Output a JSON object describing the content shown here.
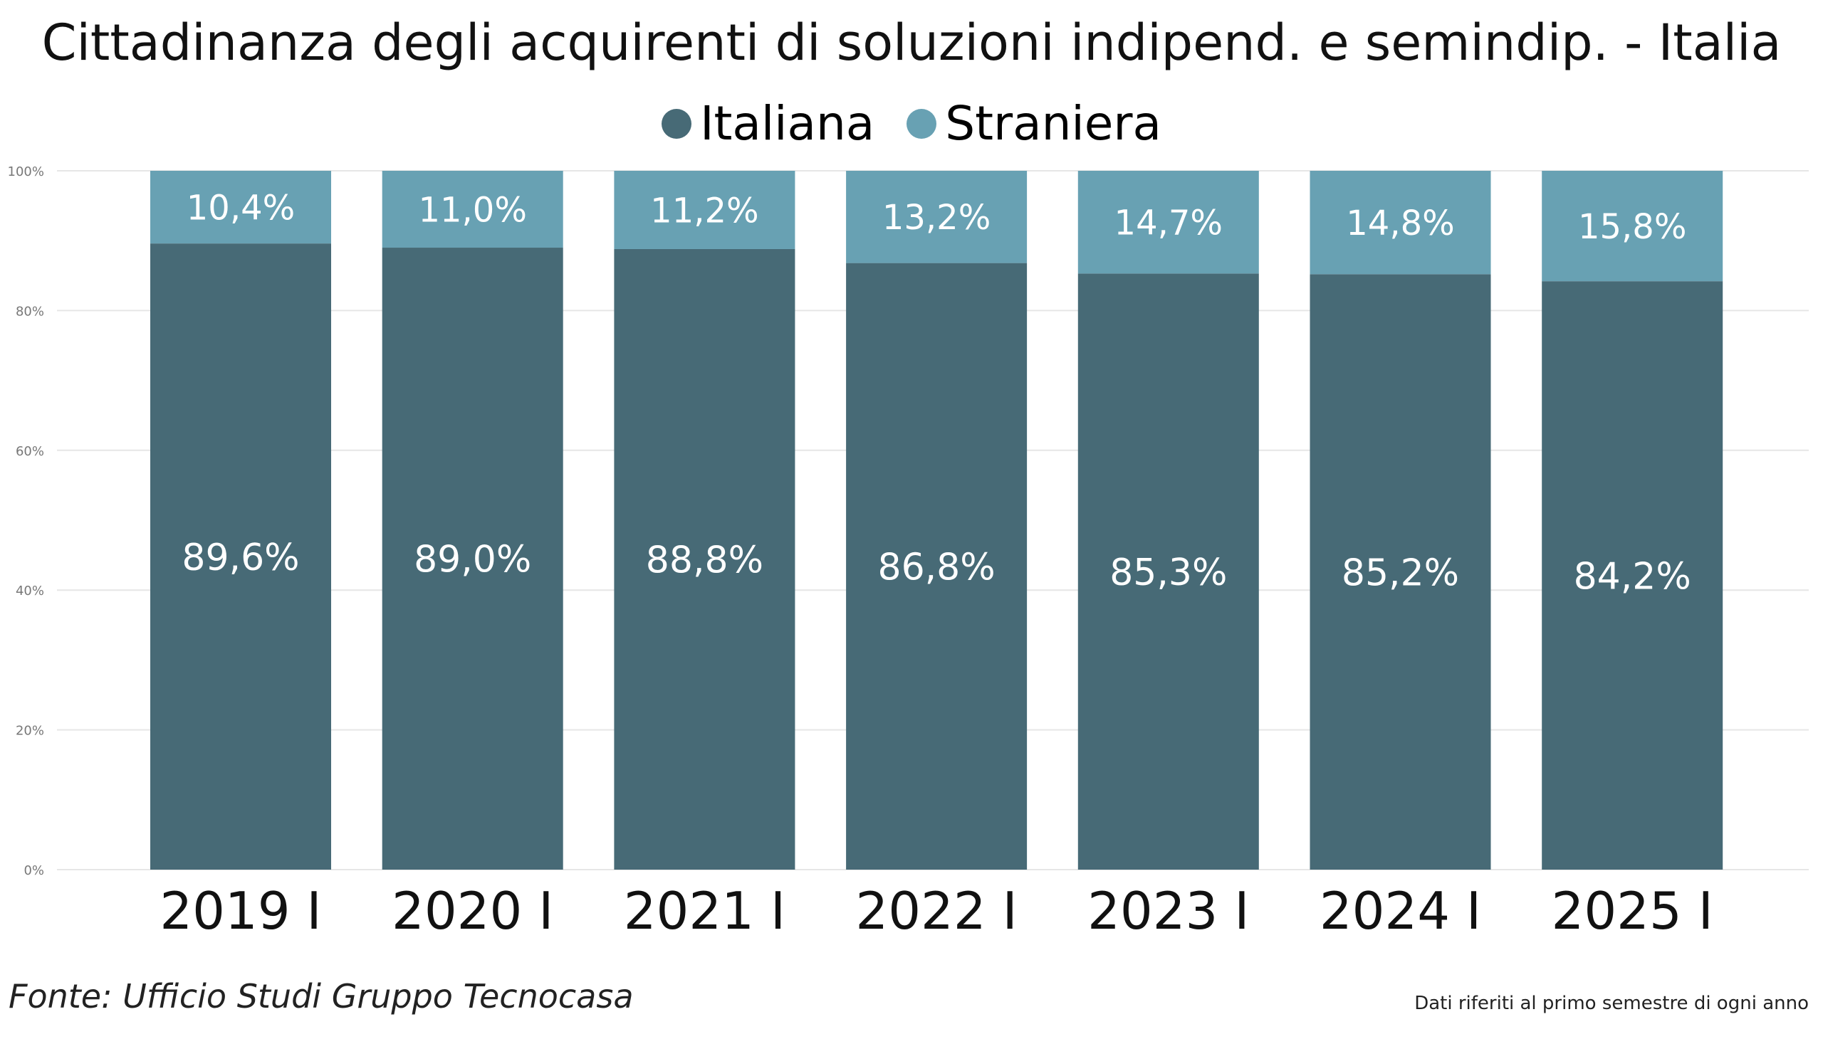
{
  "chart_data": {
    "type": "bar",
    "stacked": true,
    "percent_stacked": true,
    "title": "Cittadinanza degli acquirenti di soluzioni indipend. e semindip. - Italia",
    "categories": [
      "2019 I",
      "2020 I",
      "2021 I",
      "2022 I",
      "2023 I",
      "2024 I",
      "2025 I"
    ],
    "series": [
      {
        "name": "Italiana",
        "color": "#476A76",
        "values": [
          89.6,
          89.0,
          88.8,
          86.8,
          85.3,
          85.2,
          84.2
        ],
        "labels": [
          "89,6%",
          "89,0%",
          "88,8%",
          "86,8%",
          "85,3%",
          "85,2%",
          "84,2%"
        ]
      },
      {
        "name": "Straniera",
        "color": "#68A1B3",
        "values": [
          10.4,
          11.0,
          11.2,
          13.2,
          14.7,
          14.8,
          15.8
        ],
        "labels": [
          "10,4%",
          "11,0%",
          "11,2%",
          "13,2%",
          "14,7%",
          "14,8%",
          "15,8%"
        ]
      }
    ],
    "ylim": [
      0,
      100
    ],
    "yticks": [
      0,
      20,
      40,
      60,
      80,
      100
    ],
    "ytick_labels": [
      "0%",
      "20%",
      "40%",
      "60%",
      "80%",
      "100%"
    ],
    "grid": true,
    "legend_position": "top-center",
    "xlabel": "",
    "ylabel": ""
  },
  "footer": {
    "source": "Fonte: Ufficio Studi Gruppo Tecnocasa",
    "note": "Dati riferiti al primo semestre di ogni anno"
  }
}
